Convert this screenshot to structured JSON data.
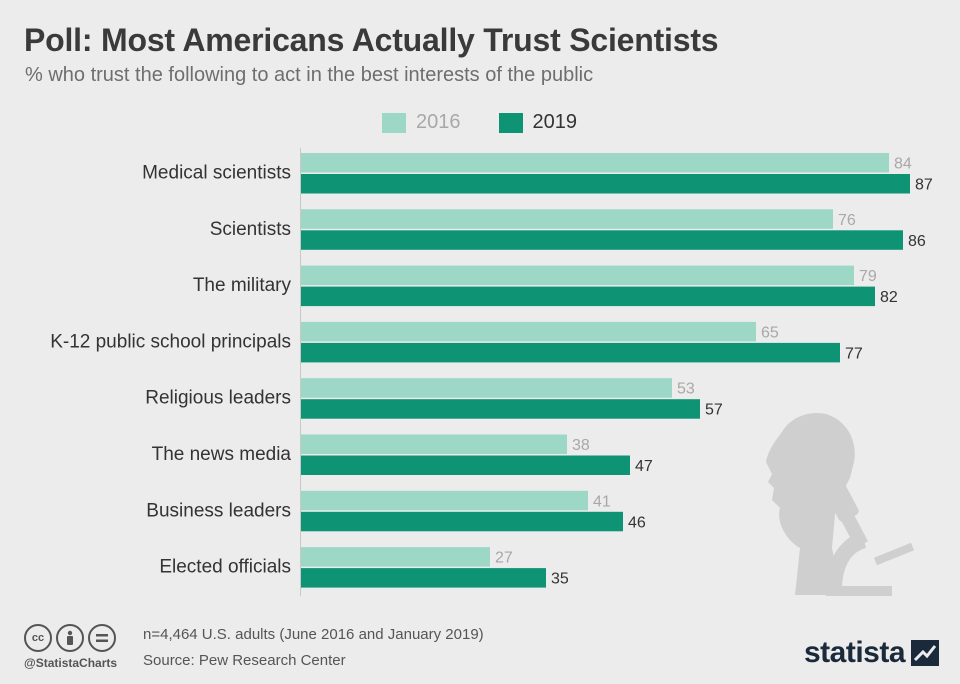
{
  "title": "Poll: Most Americans Actually Trust Scientists",
  "subtitle": "% who trust the following to act in the best interests of the public",
  "legend": {
    "s2016": "2016",
    "s2019": "2019"
  },
  "colors": {
    "s2016": "#9dd7c6",
    "s2019": "#0e9474",
    "label2016": "#a8a8a8",
    "label2019": "#333333",
    "illustration": "#cfcfcf"
  },
  "chart_data": {
    "type": "bar",
    "orientation": "horizontal",
    "title": "Poll: Most Americans Actually Trust Scientists",
    "subtitle": "% who trust the following to act in the best interests of the public",
    "categories": [
      "Medical scientists",
      "Scientists",
      "The military",
      "K-12 public school principals",
      "Religious leaders",
      "The news media",
      "Business leaders",
      "Elected officials"
    ],
    "series": [
      {
        "name": "2016",
        "values": [
          84,
          76,
          79,
          65,
          53,
          38,
          41,
          27
        ]
      },
      {
        "name": "2019",
        "values": [
          87,
          86,
          82,
          77,
          57,
          47,
          46,
          35
        ]
      }
    ],
    "xlim": [
      0,
      100
    ],
    "legend_position": "top",
    "grid": false
  },
  "footer": {
    "handle": "@StatistaCharts",
    "note": "n=4,464 U.S. adults (June 2016 and January 2019)",
    "source": "Source: Pew Research Center",
    "brand": "statista",
    "license_icons": [
      "cc",
      "by",
      "nd"
    ]
  },
  "illustration_icon": "scientist-microscope-icon"
}
